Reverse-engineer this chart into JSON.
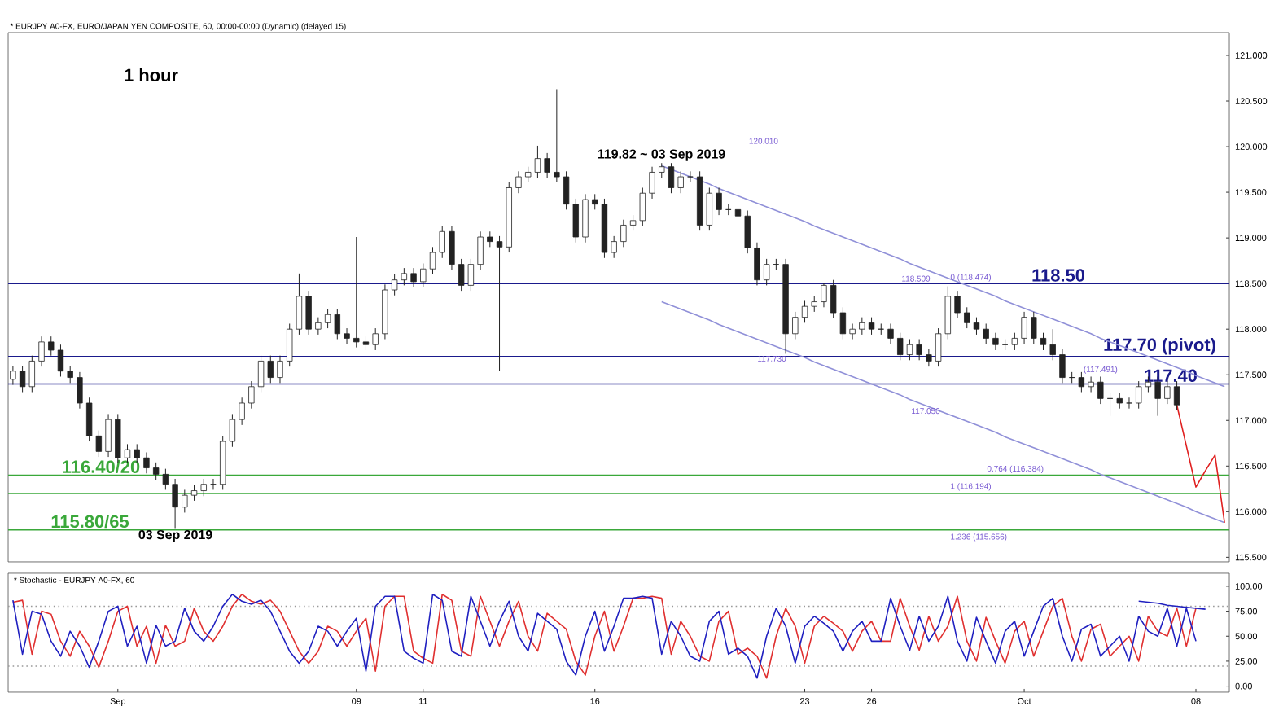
{
  "chart_data": [
    {
      "type": "candlestick",
      "title": "1 hour",
      "subtitle": "* EURJPY A0-FX, EURO/JAPAN YEN COMPOSITE, 60, 00:00-00:00 (Dynamic) (delayed 15)",
      "color": "#222222",
      "categories": [
        null,
        null,
        null,
        null,
        null,
        null,
        null,
        null,
        null,
        null,
        null,
        null,
        null,
        null,
        null,
        null,
        null,
        null,
        null,
        null,
        null,
        null,
        null,
        null,
        null,
        null,
        null,
        null,
        null,
        null,
        null,
        null,
        null,
        null,
        null,
        null,
        null,
        null,
        null,
        null,
        null,
        null,
        null,
        null,
        null,
        null,
        null,
        null,
        null,
        null,
        null,
        null,
        null,
        null,
        null,
        null,
        null,
        null,
        null,
        null,
        null,
        null,
        null,
        null,
        null,
        null,
        null,
        null,
        null,
        null,
        null,
        null,
        null,
        null,
        null,
        null,
        null,
        null,
        null,
        null,
        null,
        null,
        null,
        null,
        null,
        null,
        null,
        null,
        null,
        null,
        null,
        null,
        null,
        null,
        null,
        null,
        null,
        null,
        null,
        null,
        null,
        null,
        null,
        null,
        null,
        null,
        null,
        null,
        null,
        null,
        null,
        null,
        null,
        null,
        null,
        null,
        null,
        null,
        null,
        null,
        null,
        null,
        null,
        null,
        null,
        null,
        null,
        null
      ],
      "ohlc": [
        [
          117.45,
          117.6,
          117.39,
          117.54
        ],
        [
          117.54,
          117.6,
          117.31,
          117.37
        ],
        [
          117.37,
          117.71,
          117.31,
          117.65
        ],
        [
          117.65,
          117.92,
          117.59,
          117.86
        ],
        [
          117.86,
          117.92,
          117.71,
          117.77
        ],
        [
          117.77,
          117.83,
          117.48,
          117.54
        ],
        [
          117.54,
          117.6,
          117.41,
          117.47
        ],
        [
          117.47,
          117.53,
          117.13,
          117.19
        ],
        [
          117.19,
          117.25,
          116.77,
          116.83
        ],
        [
          116.83,
          116.89,
          116.6,
          116.66
        ],
        [
          116.66,
          117.07,
          116.6,
          117.01
        ],
        [
          117.01,
          117.07,
          116.53,
          116.59
        ],
        [
          116.59,
          116.74,
          116.53,
          116.68
        ],
        [
          116.68,
          116.74,
          116.53,
          116.59
        ],
        [
          116.59,
          116.65,
          116.42,
          116.48
        ],
        [
          116.48,
          116.54,
          116.35,
          116.41
        ],
        [
          116.41,
          116.47,
          116.24,
          116.3
        ],
        [
          116.3,
          116.36,
          115.82,
          116.05
        ],
        [
          116.05,
          116.24,
          115.99,
          116.18
        ],
        [
          116.18,
          116.29,
          116.12,
          116.23
        ],
        [
          116.23,
          116.36,
          116.17,
          116.3
        ],
        [
          116.3,
          116.36,
          116.24,
          116.3
        ],
        [
          116.3,
          116.83,
          116.24,
          116.77
        ],
        [
          116.77,
          117.07,
          116.71,
          117.01
        ],
        [
          117.01,
          117.25,
          116.95,
          117.19
        ],
        [
          117.19,
          117.43,
          117.13,
          117.37
        ],
        [
          117.37,
          117.71,
          117.31,
          117.65
        ],
        [
          117.65,
          117.71,
          117.41,
          117.47
        ],
        [
          117.47,
          117.71,
          117.41,
          117.65
        ],
        [
          117.65,
          118.06,
          117.59,
          118.0
        ],
        [
          118.0,
          118.61,
          117.94,
          118.36
        ],
        [
          118.36,
          118.42,
          117.94,
          118.0
        ],
        [
          118.0,
          118.13,
          117.94,
          118.07
        ],
        [
          118.07,
          118.22,
          118.01,
          118.16
        ],
        [
          118.16,
          118.22,
          117.89,
          117.95
        ],
        [
          117.95,
          118.01,
          117.84,
          117.9
        ],
        [
          117.9,
          119.01,
          117.8,
          117.86
        ],
        [
          117.86,
          117.92,
          117.77,
          117.83
        ],
        [
          117.83,
          118.01,
          117.77,
          117.95
        ],
        [
          117.95,
          118.49,
          117.89,
          118.43
        ],
        [
          118.43,
          118.6,
          118.37,
          118.54
        ],
        [
          118.54,
          118.67,
          118.48,
          118.61
        ],
        [
          118.61,
          118.67,
          118.46,
          118.52
        ],
        [
          118.52,
          118.72,
          118.46,
          118.66
        ],
        [
          118.66,
          118.9,
          118.6,
          118.84
        ],
        [
          118.84,
          119.13,
          118.78,
          119.07
        ],
        [
          119.07,
          119.13,
          118.65,
          118.71
        ],
        [
          118.71,
          118.77,
          118.42,
          118.48
        ],
        [
          118.48,
          118.77,
          118.42,
          118.71
        ],
        [
          118.71,
          119.07,
          118.65,
          119.01
        ],
        [
          119.01,
          119.07,
          118.9,
          118.96
        ],
        [
          118.96,
          119.02,
          117.54,
          118.9
        ],
        [
          118.9,
          119.61,
          118.84,
          119.55
        ],
        [
          119.55,
          119.73,
          119.49,
          119.67
        ],
        [
          119.67,
          119.78,
          119.61,
          119.72
        ],
        [
          119.72,
          120.01,
          119.66,
          119.87
        ],
        [
          119.87,
          119.93,
          119.66,
          119.72
        ],
        [
          119.72,
          120.63,
          119.61,
          119.67
        ],
        [
          119.67,
          119.73,
          119.31,
          119.37
        ],
        [
          119.37,
          119.43,
          118.95,
          119.01
        ],
        [
          119.01,
          119.48,
          118.95,
          119.42
        ],
        [
          119.42,
          119.48,
          119.31,
          119.37
        ],
        [
          119.37,
          119.43,
          118.78,
          118.84
        ],
        [
          118.84,
          119.02,
          118.78,
          118.96
        ],
        [
          118.96,
          119.2,
          118.9,
          119.14
        ],
        [
          119.14,
          119.25,
          119.08,
          119.19
        ],
        [
          119.19,
          119.55,
          119.13,
          119.49
        ],
        [
          119.49,
          119.78,
          119.43,
          119.72
        ],
        [
          119.72,
          119.82,
          119.66,
          119.78
        ],
        [
          119.78,
          119.82,
          119.49,
          119.55
        ],
        [
          119.55,
          119.73,
          119.49,
          119.67
        ],
        [
          119.67,
          119.73,
          119.61,
          119.67
        ],
        [
          119.67,
          119.73,
          119.08,
          119.14
        ],
        [
          119.14,
          119.55,
          119.08,
          119.49
        ],
        [
          119.49,
          119.55,
          119.25,
          119.31
        ],
        [
          119.31,
          119.37,
          119.25,
          119.31
        ],
        [
          119.31,
          119.37,
          119.18,
          119.24
        ],
        [
          119.24,
          119.3,
          118.83,
          118.89
        ],
        [
          118.89,
          118.95,
          118.48,
          118.54
        ],
        [
          118.54,
          118.77,
          118.48,
          118.71
        ],
        [
          118.71,
          118.77,
          118.65,
          118.71
        ],
        [
          118.71,
          118.77,
          117.73,
          117.95
        ],
        [
          117.95,
          118.19,
          117.89,
          118.13
        ],
        [
          118.13,
          118.31,
          118.07,
          118.25
        ],
        [
          118.25,
          118.36,
          118.19,
          118.3
        ],
        [
          118.3,
          118.51,
          118.24,
          118.48
        ],
        [
          118.48,
          118.54,
          118.12,
          118.18
        ],
        [
          118.18,
          118.24,
          117.89,
          117.95
        ],
        [
          117.95,
          118.06,
          117.89,
          118.0
        ],
        [
          118.0,
          118.13,
          117.94,
          118.07
        ],
        [
          118.07,
          118.13,
          117.94,
          118.0
        ],
        [
          118.0,
          118.06,
          117.94,
          118.0
        ],
        [
          118.0,
          118.06,
          117.84,
          117.9
        ],
        [
          117.9,
          117.96,
          117.66,
          117.72
        ],
        [
          117.72,
          117.89,
          117.66,
          117.83
        ],
        [
          117.83,
          117.89,
          117.66,
          117.72
        ],
        [
          117.72,
          117.78,
          117.59,
          117.65
        ],
        [
          117.65,
          118.01,
          117.59,
          117.95
        ],
        [
          117.95,
          118.47,
          117.89,
          118.36
        ],
        [
          118.36,
          118.42,
          118.12,
          118.18
        ],
        [
          118.18,
          118.24,
          118.01,
          118.07
        ],
        [
          118.07,
          118.13,
          117.94,
          118.0
        ],
        [
          118.0,
          118.06,
          117.84,
          117.9
        ],
        [
          117.9,
          117.96,
          117.77,
          117.83
        ],
        [
          117.83,
          117.89,
          117.77,
          117.83
        ],
        [
          117.83,
          117.96,
          117.77,
          117.9
        ],
        [
          117.9,
          118.19,
          117.84,
          118.13
        ],
        [
          118.13,
          118.19,
          117.84,
          117.9
        ],
        [
          117.9,
          117.96,
          117.77,
          117.83
        ],
        [
          117.83,
          118.0,
          117.66,
          117.72
        ],
        [
          117.72,
          117.78,
          117.41,
          117.47
        ],
        [
          117.47,
          117.53,
          117.41,
          117.47
        ],
        [
          117.47,
          117.53,
          117.31,
          117.37
        ],
        [
          117.37,
          117.48,
          117.31,
          117.42
        ],
        [
          117.42,
          117.48,
          117.18,
          117.24
        ],
        [
          117.24,
          117.3,
          117.05,
          117.24
        ],
        [
          117.24,
          117.3,
          117.13,
          117.19
        ],
        [
          117.19,
          117.25,
          117.13,
          117.19
        ],
        [
          117.19,
          117.43,
          117.13,
          117.37
        ],
        [
          117.37,
          117.48,
          117.31,
          117.42
        ],
        [
          117.42,
          117.48,
          117.05,
          117.24
        ],
        [
          117.24,
          117.43,
          117.18,
          117.37
        ],
        [
          117.37,
          117.43,
          117.11,
          117.17
        ],
        null,
        null,
        null,
        null,
        null
      ],
      "series": [
        {
          "type": "line",
          "color": "#9090d8",
          "values": [
            null,
            null,
            null,
            null,
            null,
            null,
            null,
            null,
            null,
            null,
            null,
            null,
            null,
            null,
            null,
            null,
            null,
            null,
            null,
            null,
            null,
            null,
            null,
            null,
            null,
            null,
            null,
            null,
            null,
            null,
            null,
            null,
            null,
            null,
            null,
            null,
            null,
            null,
            null,
            null,
            null,
            null,
            null,
            null,
            null,
            null,
            null,
            null,
            null,
            null,
            null,
            null,
            null,
            null,
            null,
            null,
            null,
            null,
            null,
            null,
            null,
            null,
            null,
            null,
            null,
            null,
            null,
            null,
            119.79,
            119.75,
            119.71,
            119.67,
            119.63,
            119.59,
            119.54,
            119.5,
            119.46,
            119.42,
            119.38,
            119.34,
            119.3,
            119.26,
            119.22,
            119.18,
            119.13,
            119.09,
            119.05,
            119.01,
            118.97,
            118.93,
            118.89,
            118.85,
            118.81,
            118.77,
            118.72,
            118.68,
            118.64,
            118.6,
            118.56,
            118.52,
            118.48,
            118.44,
            118.4,
            118.36,
            118.31,
            118.27,
            118.23,
            118.19,
            118.15,
            118.11,
            118.07,
            118.03,
            117.99,
            117.95,
            117.9,
            117.86,
            117.82,
            117.78,
            117.74,
            117.7,
            117.66,
            117.62,
            117.58,
            117.54,
            117.49,
            117.45,
            117.41,
            117.37
          ]
        },
        {
          "type": "line",
          "color": "#9090d8",
          "values": [
            null,
            null,
            null,
            null,
            null,
            null,
            null,
            null,
            null,
            null,
            null,
            null,
            null,
            null,
            null,
            null,
            null,
            null,
            null,
            null,
            null,
            null,
            null,
            null,
            null,
            null,
            null,
            null,
            null,
            null,
            null,
            null,
            null,
            null,
            null,
            null,
            null,
            null,
            null,
            null,
            null,
            null,
            null,
            null,
            null,
            null,
            null,
            null,
            null,
            null,
            null,
            null,
            null,
            null,
            null,
            null,
            null,
            null,
            null,
            null,
            null,
            null,
            null,
            null,
            null,
            null,
            null,
            null,
            118.3,
            118.26,
            118.22,
            118.18,
            118.14,
            118.1,
            118.05,
            118.01,
            117.97,
            117.93,
            117.89,
            117.85,
            117.81,
            117.77,
            117.73,
            117.69,
            117.64,
            117.6,
            117.56,
            117.52,
            117.48,
            117.44,
            117.4,
            117.36,
            117.32,
            117.28,
            117.23,
            117.19,
            117.15,
            117.11,
            117.07,
            117.03,
            116.99,
            116.95,
            116.91,
            116.87,
            116.82,
            116.78,
            116.74,
            116.7,
            116.66,
            116.62,
            116.58,
            116.54,
            116.5,
            116.46,
            116.41,
            116.37,
            116.33,
            116.29,
            116.25,
            116.21,
            116.17,
            116.13,
            116.09,
            116.05,
            116.0,
            115.96,
            115.92,
            115.88
          ]
        },
        {
          "type": "line",
          "color": "#e02020",
          "values": [
            null,
            null,
            null,
            null,
            null,
            null,
            null,
            null,
            null,
            null,
            null,
            null,
            null,
            null,
            null,
            null,
            null,
            null,
            null,
            null,
            null,
            null,
            null,
            null,
            null,
            null,
            null,
            null,
            null,
            null,
            null,
            null,
            null,
            null,
            null,
            null,
            null,
            null,
            null,
            null,
            null,
            null,
            null,
            null,
            null,
            null,
            null,
            null,
            null,
            null,
            null,
            null,
            null,
            null,
            null,
            null,
            null,
            null,
            null,
            null,
            null,
            null,
            null,
            null,
            null,
            null,
            null,
            null,
            null,
            null,
            null,
            null,
            null,
            null,
            null,
            null,
            null,
            null,
            null,
            null,
            null,
            null,
            null,
            null,
            null,
            null,
            null,
            null,
            null,
            null,
            null,
            null,
            null,
            null,
            null,
            null,
            null,
            null,
            null,
            null,
            null,
            null,
            null,
            null,
            null,
            null,
            null,
            null,
            null,
            null,
            null,
            null,
            null,
            null,
            null,
            null,
            null,
            null,
            null,
            null,
            null,
            null,
            117.17,
            116.72,
            116.27,
            116.45,
            116.62,
            115.88
          ]
        }
      ],
      "ylim": [
        115.45,
        121.25
      ],
      "yticks": [
        {
          "value": 115.5,
          "label": "115.500"
        },
        {
          "value": 116,
          "label": "116.000"
        },
        {
          "value": 116.5,
          "label": "116.500"
        },
        {
          "value": 117,
          "label": "117.000"
        },
        {
          "value": 117.5,
          "label": "117.500"
        },
        {
          "value": 118,
          "label": "118.000"
        },
        {
          "value": 118.5,
          "label": "118.500"
        },
        {
          "value": 119,
          "label": "119.000"
        },
        {
          "value": 119.5,
          "label": "119.500"
        },
        {
          "value": 120,
          "label": "120.000"
        },
        {
          "value": 120.5,
          "label": "120.500"
        },
        {
          "value": 121,
          "label": "121.000"
        }
      ],
      "tick_labels": "y",
      "ref_lines": [
        {
          "axis": "y",
          "value": 118.5,
          "label": "118.50",
          "color": "#1a1a8c"
        },
        {
          "axis": "y",
          "value": 117.7,
          "label": "117.70 (pivot)",
          "color": "#1a1a8c"
        },
        {
          "axis": "y",
          "value": 117.4,
          "label": "117.40",
          "color": "#1a1a8c"
        },
        {
          "axis": "y",
          "value": 116.4,
          "label": "116.40/20",
          "color": "#3aa83a"
        },
        {
          "axis": "y",
          "value": 116.2,
          "color": "#3aa83a"
        },
        {
          "axis": "y",
          "value": 115.8,
          "label": "115.80/65",
          "color": "#3aa83a"
        }
      ],
      "annotations": [
        {
          "text": "119.82 ~ 03 Sep 2019",
          "y": 119.82
        },
        {
          "text": "03 Sep 2019",
          "y": 115.82
        },
        "120.010",
        "118.509",
        "0 (118.474)",
        "117.730",
        "117.050",
        "(117.491)",
        "0.764 (116.384)",
        "1 (116.194)",
        "1.236 (115.656)"
      ]
    },
    {
      "type": "line",
      "title": "* Stochastic - EURJPY A0-FX, 60",
      "categories": [
        null,
        null,
        null,
        null,
        null,
        null,
        null,
        null,
        null,
        null,
        null,
        "Sep",
        null,
        null,
        null,
        null,
        null,
        null,
        null,
        null,
        null,
        null,
        null,
        null,
        null,
        null,
        null,
        null,
        null,
        null,
        null,
        null,
        null,
        null,
        null,
        null,
        "09",
        null,
        null,
        null,
        null,
        null,
        null,
        "11",
        null,
        null,
        null,
        null,
        null,
        null,
        null,
        null,
        null,
        null,
        null,
        null,
        null,
        null,
        null,
        null,
        null,
        "16",
        null,
        null,
        null,
        null,
        null,
        null,
        null,
        null,
        null,
        null,
        null,
        null,
        null,
        null,
        null,
        null,
        null,
        null,
        null,
        null,
        null,
        "23",
        null,
        null,
        null,
        null,
        null,
        null,
        "26",
        null,
        null,
        null,
        null,
        null,
        null,
        null,
        null,
        null,
        null,
        null,
        null,
        null,
        null,
        null,
        "Oct",
        null,
        null,
        null,
        null,
        null,
        null,
        null,
        null,
        null,
        null,
        null,
        null,
        null,
        null,
        null,
        null,
        null,
        "08",
        null,
        null,
        null
      ],
      "series": [
        {
          "color": "#e03030",
          "values": [
            84,
            86,
            32,
            75,
            72,
            45,
            30,
            55,
            40,
            19,
            45,
            75,
            80,
            40,
            60,
            23,
            61,
            40,
            45,
            78,
            55,
            45,
            60,
            80,
            92,
            85,
            82,
            86,
            75,
            55,
            35,
            23,
            35,
            60,
            55,
            40,
            55,
            68,
            15,
            80,
            90,
            90,
            35,
            28,
            23,
            92,
            86,
            35,
            30,
            90,
            65,
            40,
            65,
            85,
            50,
            35,
            73,
            65,
            57,
            25,
            11,
            50,
            75,
            35,
            60,
            88,
            88,
            90,
            88,
            32,
            65,
            50,
            30,
            25,
            65,
            75,
            32,
            38,
            30,
            8,
            50,
            78,
            60,
            23,
            60,
            70,
            63,
            55,
            35,
            55,
            65,
            45,
            45,
            88,
            60,
            36,
            70,
            45,
            60,
            90,
            45,
            25,
            69,
            45,
            23,
            55,
            65,
            30,
            55,
            80,
            88,
            50,
            25,
            57,
            62,
            30,
            40,
            50,
            25,
            70,
            55,
            50,
            78,
            40,
            78,
            null,
            null,
            null
          ]
        },
        {
          "color": "#2020c0",
          "values": [
            86,
            32,
            75,
            72,
            45,
            30,
            55,
            40,
            19,
            45,
            75,
            80,
            40,
            60,
            23,
            61,
            40,
            45,
            78,
            55,
            45,
            60,
            80,
            92,
            85,
            82,
            86,
            75,
            55,
            35,
            23,
            35,
            60,
            55,
            40,
            55,
            68,
            15,
            80,
            90,
            90,
            35,
            28,
            23,
            92,
            86,
            35,
            30,
            90,
            65,
            40,
            65,
            85,
            50,
            35,
            73,
            65,
            57,
            25,
            11,
            50,
            75,
            35,
            60,
            88,
            88,
            90,
            88,
            32,
            65,
            50,
            30,
            25,
            65,
            75,
            32,
            38,
            30,
            8,
            50,
            78,
            60,
            23,
            60,
            70,
            63,
            55,
            35,
            55,
            65,
            45,
            45,
            88,
            60,
            36,
            70,
            45,
            60,
            90,
            45,
            25,
            69,
            45,
            23,
            55,
            65,
            30,
            55,
            80,
            88,
            50,
            25,
            57,
            62,
            30,
            40,
            50,
            25,
            70,
            55,
            50,
            78,
            40,
            78,
            45,
            null,
            null,
            null
          ]
        },
        {
          "color": "#2020c0",
          "values": [
            null,
            null,
            null,
            null,
            null,
            null,
            null,
            null,
            null,
            null,
            null,
            null,
            null,
            null,
            null,
            null,
            null,
            null,
            null,
            null,
            null,
            null,
            null,
            null,
            null,
            null,
            null,
            null,
            null,
            null,
            null,
            null,
            null,
            null,
            null,
            null,
            null,
            null,
            null,
            null,
            null,
            null,
            null,
            null,
            null,
            null,
            null,
            null,
            null,
            null,
            null,
            null,
            null,
            null,
            null,
            null,
            null,
            null,
            null,
            null,
            null,
            null,
            null,
            null,
            null,
            null,
            null,
            null,
            null,
            null,
            null,
            null,
            null,
            null,
            null,
            null,
            null,
            null,
            null,
            null,
            null,
            null,
            null,
            null,
            null,
            null,
            null,
            null,
            null,
            null,
            null,
            null,
            null,
            null,
            null,
            null,
            null,
            null,
            null,
            null,
            null,
            null,
            null,
            null,
            null,
            null,
            null,
            null,
            null,
            null,
            null,
            null,
            null,
            null,
            null,
            null,
            null,
            null,
            85,
            84,
            83,
            81,
            80,
            79,
            78,
            77,
            null,
            null
          ]
        }
      ],
      "ylim": [
        -6,
        113
      ],
      "yticks": [
        {
          "value": 0,
          "label": "0.00"
        },
        {
          "value": 25,
          "label": "25.00"
        },
        {
          "value": 50,
          "label": "50.00"
        },
        {
          "value": 75,
          "label": "75.00"
        },
        {
          "value": 100,
          "label": "100.00"
        }
      ],
      "ref_lines": [
        {
          "axis": "y",
          "value": 80,
          "color": "#999999",
          "line_style": "dotted"
        },
        {
          "axis": "y",
          "value": 20,
          "color": "#999999",
          "line_style": "dotted"
        }
      ]
    }
  ]
}
